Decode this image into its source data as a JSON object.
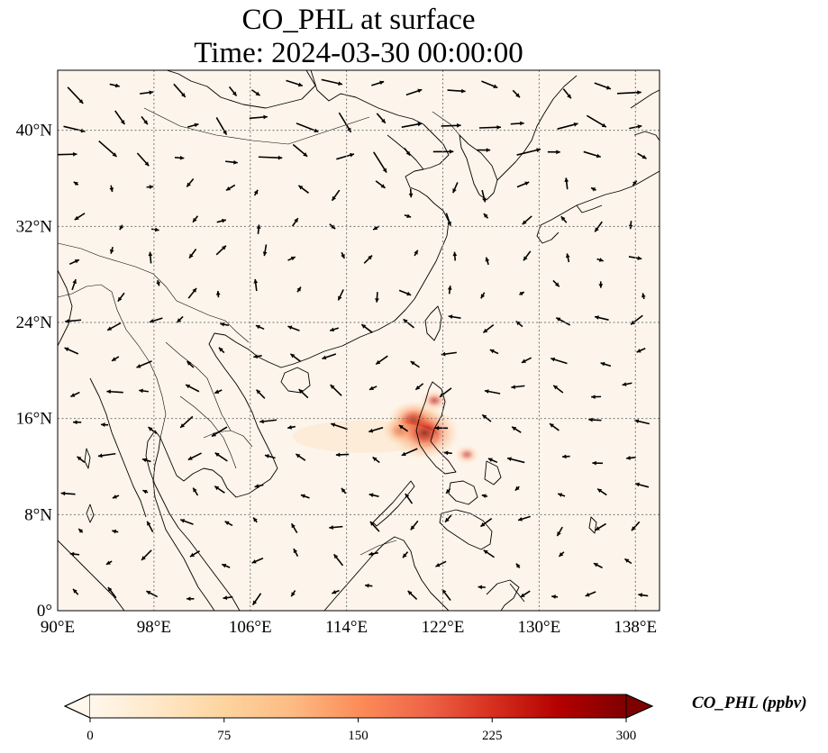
{
  "title": {
    "line1": "CO_PHL at surface",
    "line2": "Time: 2024-03-30 00:00:00"
  },
  "map": {
    "lon_range": [
      90,
      140
    ],
    "lat_range": [
      0,
      45
    ],
    "lon_ticks": [
      {
        "value": 90,
        "label": "90°E"
      },
      {
        "value": 98,
        "label": "98°E"
      },
      {
        "value": 106,
        "label": "106°E"
      },
      {
        "value": 114,
        "label": "114°E"
      },
      {
        "value": 122,
        "label": "122°E"
      },
      {
        "value": 130,
        "label": "130°E"
      },
      {
        "value": 138,
        "label": "138°E"
      }
    ],
    "lat_ticks": [
      {
        "value": 0,
        "label": "0°"
      },
      {
        "value": 8,
        "label": "8°N"
      },
      {
        "value": 16,
        "label": "16°N"
      },
      {
        "value": 24,
        "label": "24°N"
      },
      {
        "value": 32,
        "label": "32°N"
      },
      {
        "value": 40,
        "label": "40°N"
      }
    ],
    "gridlines": true,
    "background_color": "#fdf5eb",
    "plume_sources": [
      {
        "lon": 120.5,
        "lat": 14.8,
        "value": 300
      },
      {
        "lon": 119.6,
        "lat": 15.8,
        "value": 200
      },
      {
        "lon": 118.5,
        "lat": 15.0,
        "value": 110
      },
      {
        "lon": 121.3,
        "lat": 17.5,
        "value": 60
      },
      {
        "lon": 124.0,
        "lat": 13.0,
        "value": 40
      }
    ]
  },
  "colorbar": {
    "label": "CO_PHL (ppbv)",
    "min": 0,
    "max": 300,
    "extend": "both",
    "colormap": "OrRd",
    "colors": [
      "#fff7ec",
      "#fee8c8",
      "#fdd49e",
      "#fdbb84",
      "#fc8d59",
      "#ef6548",
      "#d7301f",
      "#b30000",
      "#7f0000"
    ],
    "ticks": [
      {
        "value": 0,
        "label": "0"
      },
      {
        "value": 75,
        "label": "75"
      },
      {
        "value": 150,
        "label": "150"
      },
      {
        "value": 225,
        "label": "225"
      },
      {
        "value": 300,
        "label": "300"
      }
    ]
  }
}
